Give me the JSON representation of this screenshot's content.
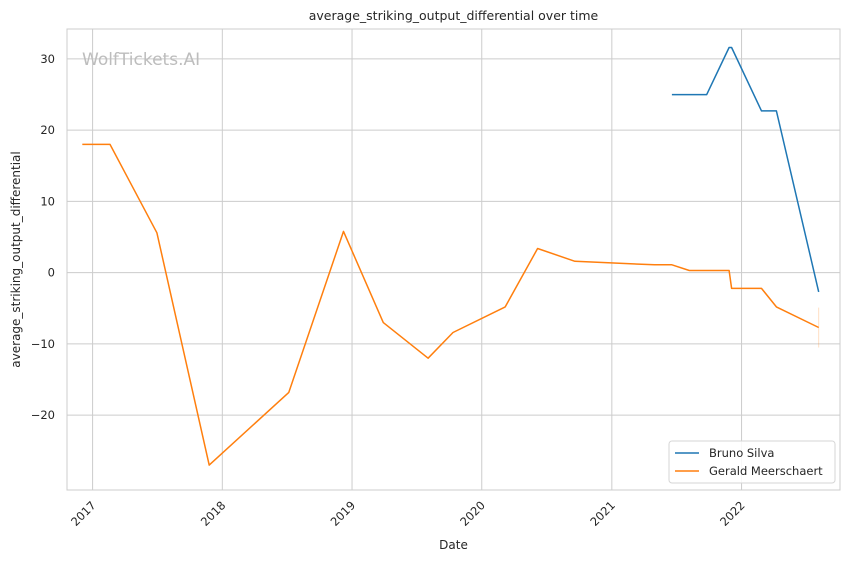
{
  "colors": {
    "grid": "#cccccc",
    "frame": "#cccccc",
    "watermark": "#bdbdbd"
  },
  "watermark": "WolfTickets.AI",
  "chart_data": {
    "type": "line",
    "title": "average_striking_output_differential over time",
    "xlabel": "Date",
    "ylabel": "average_striking_output_differential",
    "xlim": [
      "2016-10-21",
      "2022-10-05"
    ],
    "ylim": [
      -30.5,
      34.2
    ],
    "x_ticks": [
      "2017",
      "2018",
      "2019",
      "2020",
      "2021",
      "2022"
    ],
    "y_ticks": [
      -20,
      -10,
      0,
      10,
      20,
      30
    ],
    "y_tick_labels": [
      "−20",
      "−10",
      "0",
      "10",
      "20",
      "30"
    ],
    "grid": true,
    "legend_position": "bottom-right",
    "series": [
      {
        "name": "Bruno Silva",
        "color": "#1f77b4",
        "points": [
          [
            "2021-06-19",
            25.0
          ],
          [
            "2021-09-25",
            25.0
          ],
          [
            "2021-11-27",
            31.6
          ],
          [
            "2021-12-04",
            31.6
          ],
          [
            "2022-02-26",
            22.7
          ],
          [
            "2022-04-09",
            22.7
          ],
          [
            "2022-08-06",
            -2.7
          ]
        ]
      },
      {
        "name": "Gerald Meerschaert",
        "color": "#ff7f0e",
        "points": [
          [
            "2016-12-03",
            18.0
          ],
          [
            "2017-02-19",
            18.0
          ],
          [
            "2017-07-01",
            5.6
          ],
          [
            "2017-11-25",
            -27.0
          ],
          [
            "2018-07-07",
            -16.8
          ],
          [
            "2018-12-08",
            5.8
          ],
          [
            "2019-03-30",
            -7.0
          ],
          [
            "2019-08-03",
            -12.0
          ],
          [
            "2019-10-12",
            -8.4
          ],
          [
            "2020-03-07",
            -4.8
          ],
          [
            "2020-06-06",
            3.4
          ],
          [
            "2020-09-19",
            1.6
          ],
          [
            "2021-05-01",
            1.1
          ],
          [
            "2021-06-19",
            1.1
          ],
          [
            "2021-08-07",
            0.3
          ],
          [
            "2021-11-27",
            0.3
          ],
          [
            "2021-12-04",
            -2.2
          ],
          [
            "2022-02-26",
            -2.2
          ],
          [
            "2022-04-09",
            -4.8
          ],
          [
            "2022-08-06",
            -7.7
          ]
        ]
      }
    ],
    "annotations": [
      {
        "type": "error_bar",
        "series": "Gerald Meerschaert",
        "x": "2022-08-06",
        "y_low": -10.5,
        "y_high": -4.9
      }
    ]
  }
}
